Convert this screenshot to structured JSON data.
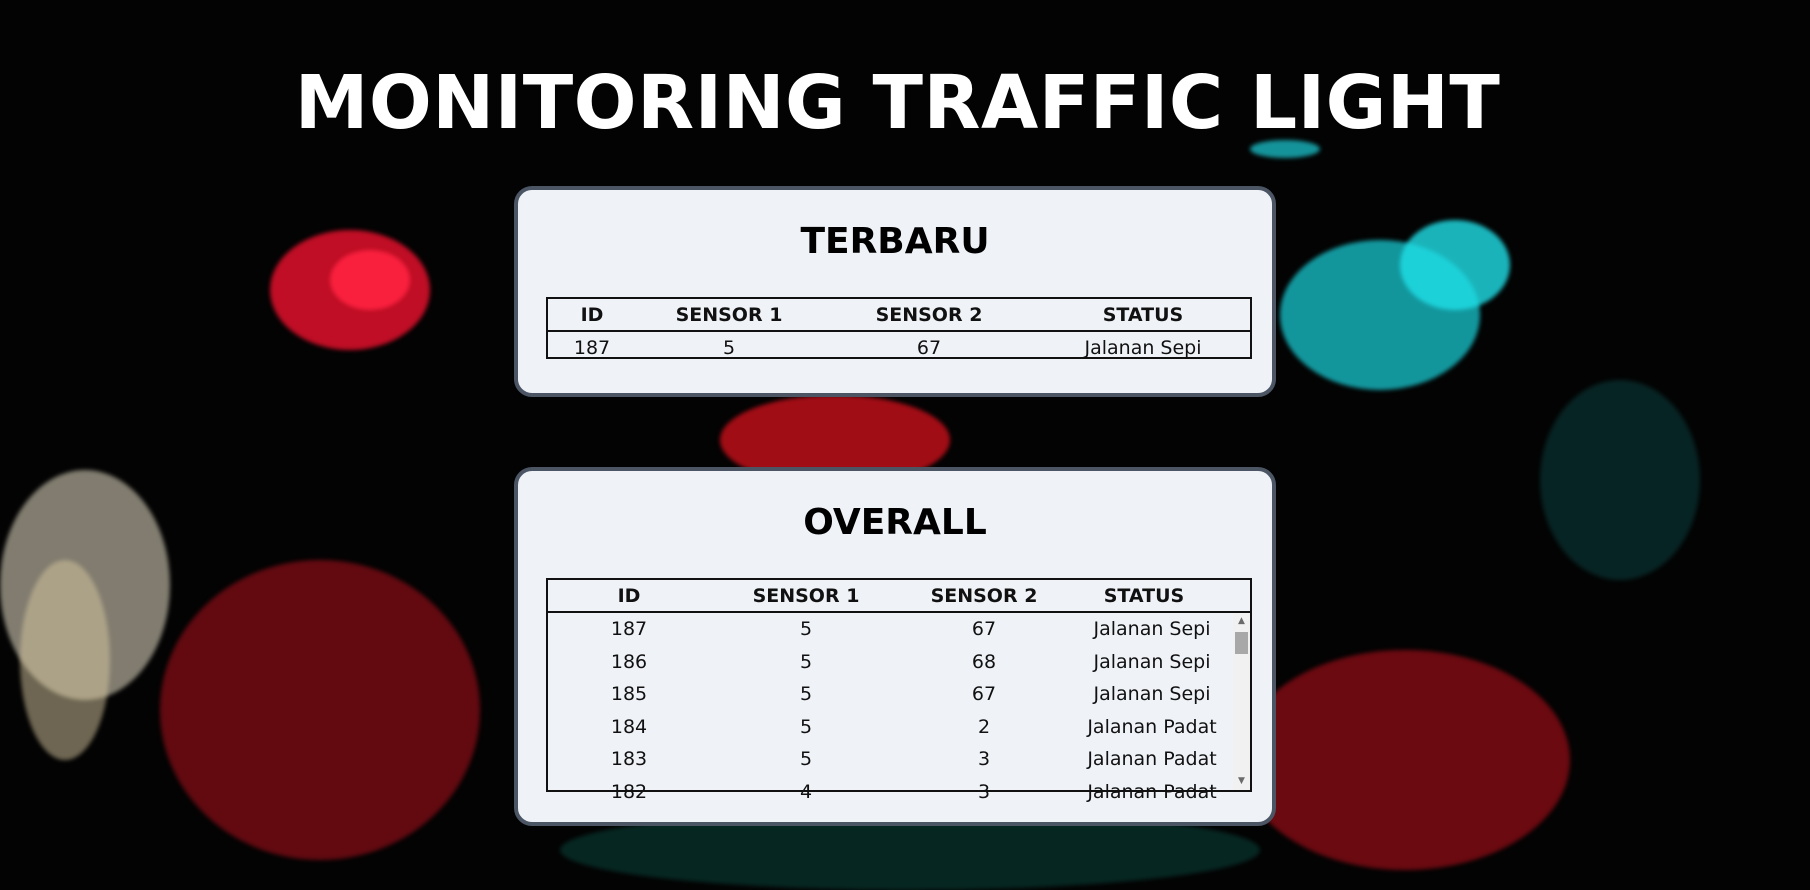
{
  "page": {
    "title": "MONITORING TRAFFIC LIGHT"
  },
  "latest": {
    "title": "TERBARU",
    "columns": [
      "ID",
      "SENSOR 1",
      "SENSOR 2",
      "STATUS"
    ],
    "row": {
      "id": "187",
      "sensor1": "5",
      "sensor2": "67",
      "status": "Jalanan Sepi"
    }
  },
  "overall": {
    "title": "OVERALL",
    "columns": [
      "ID",
      "SENSOR 1",
      "SENSOR 2",
      "STATUS"
    ],
    "rows": [
      {
        "id": "187",
        "sensor1": "5",
        "sensor2": "67",
        "status": "Jalanan Sepi"
      },
      {
        "id": "186",
        "sensor1": "5",
        "sensor2": "68",
        "status": "Jalanan Sepi"
      },
      {
        "id": "185",
        "sensor1": "5",
        "sensor2": "67",
        "status": "Jalanan Sepi"
      },
      {
        "id": "184",
        "sensor1": "5",
        "sensor2": "2",
        "status": "Jalanan Padat"
      },
      {
        "id": "183",
        "sensor1": "5",
        "sensor2": "3",
        "status": "Jalanan Padat"
      },
      {
        "id": "182",
        "sensor1": "4",
        "sensor2": "3",
        "status": "Jalanan Padat"
      }
    ],
    "scroll": {
      "up_icon": "▲",
      "down_icon": "▼"
    }
  },
  "colors": {
    "card_bg": "#eff3f8",
    "card_border": "#4b5563",
    "title_text": "#ffffff"
  }
}
